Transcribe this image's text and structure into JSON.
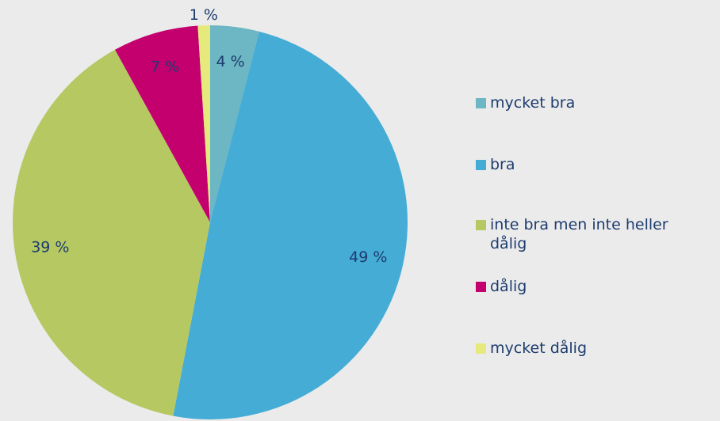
{
  "chart_data": {
    "type": "pie",
    "categories": [
      "mycket bra",
      "bra",
      "inte bra men inte heller dålig",
      "dålig",
      "mycket dålig"
    ],
    "values": [
      4,
      49,
      39,
      7,
      1
    ],
    "value_labels": [
      "4 %",
      "49 %",
      "39 %",
      "7 %",
      "1 %"
    ],
    "colors": [
      "#6db6c3",
      "#45acd5",
      "#b5c862",
      "#c4006e",
      "#e6ea7c"
    ],
    "legend": "right"
  }
}
